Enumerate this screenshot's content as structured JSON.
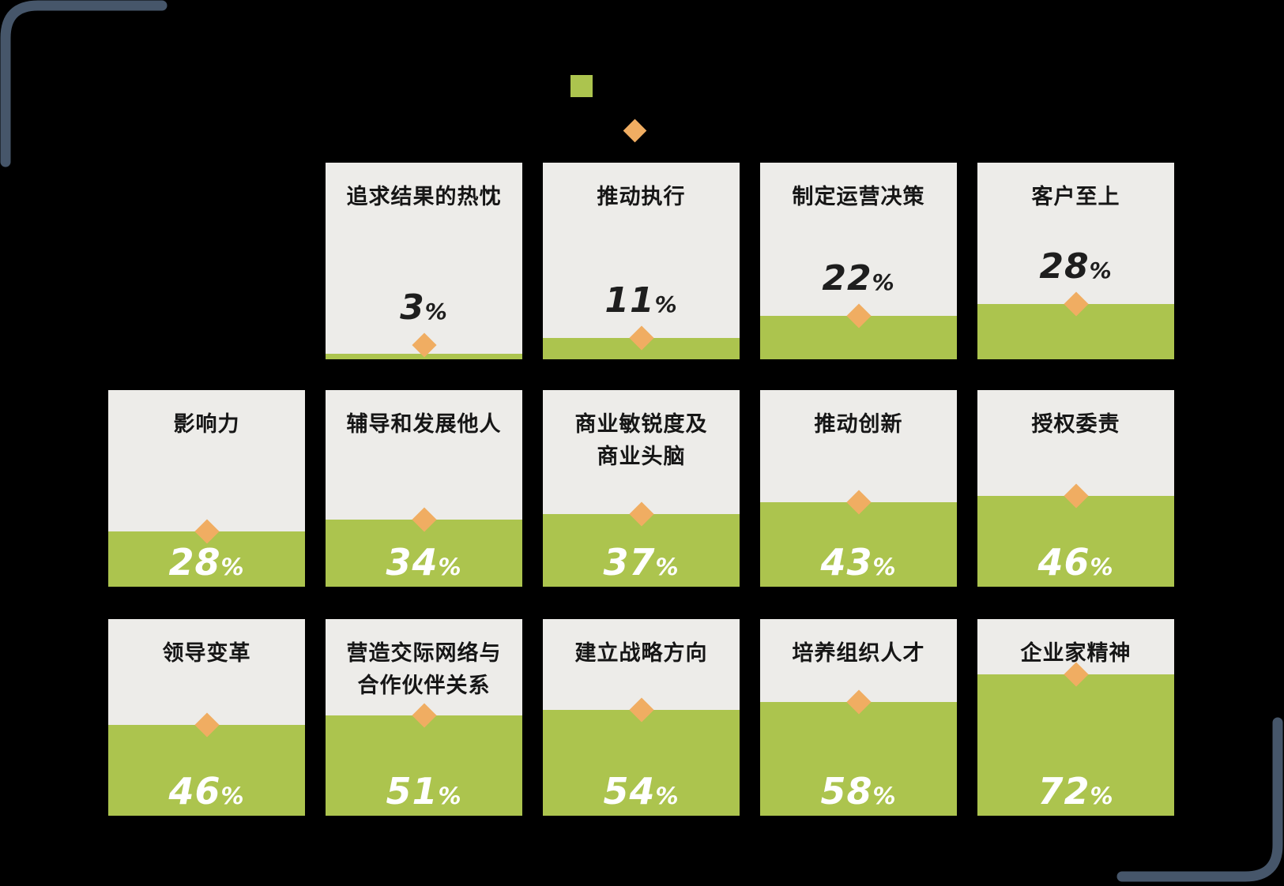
{
  "colors": {
    "background": "#000000",
    "green_fill": "#ACC44E",
    "orange_marker": "#F0AD62",
    "card_background": "#EDECE9",
    "bracket": "#46566A",
    "title_text": "#161616",
    "pct_text_dark": "#1E1E1E",
    "pct_text_light": "#FFFFFF"
  },
  "legend": {
    "fill_swatch_icon": "green-square-icon",
    "marker_swatch_icon": "orange-diamond-icon"
  },
  "cards": [
    {
      "row": 0,
      "title": "追求结果的热忱",
      "value": "3",
      "unit": "%"
    },
    {
      "row": 0,
      "title": "推动执行",
      "value": "11",
      "unit": "%"
    },
    {
      "row": 0,
      "title": "制定运营决策",
      "value": "22",
      "unit": "%"
    },
    {
      "row": 0,
      "title": "客户至上",
      "value": "28",
      "unit": "%"
    },
    {
      "row": 1,
      "title": "影响力",
      "value": "28",
      "unit": "%"
    },
    {
      "row": 1,
      "title": "辅导和发展他人",
      "value": "34",
      "unit": "%"
    },
    {
      "row": 1,
      "title": "商业敏锐度及\n商业头脑",
      "value": "37",
      "unit": "%"
    },
    {
      "row": 1,
      "title": "推动创新",
      "value": "43",
      "unit": "%"
    },
    {
      "row": 1,
      "title": "授权委责",
      "value": "46",
      "unit": "%"
    },
    {
      "row": 2,
      "title": "领导变革",
      "value": "46",
      "unit": "%"
    },
    {
      "row": 2,
      "title": "营造交际网络与\n合作伙伴关系",
      "value": "51",
      "unit": "%"
    },
    {
      "row": 2,
      "title": "建立战略方向",
      "value": "54",
      "unit": "%"
    },
    {
      "row": 2,
      "title": "培养组织人才",
      "value": "58",
      "unit": "%"
    },
    {
      "row": 2,
      "title": "企业家精神",
      "value": "72",
      "unit": "%"
    }
  ],
  "chart_data": {
    "type": "bar",
    "categories": [
      "追求结果的热忱",
      "推动执行",
      "制定运营决策",
      "客户至上",
      "影响力",
      "辅导和发展他人",
      "商业敏锐度及商业头脑",
      "推动创新",
      "授权委责",
      "领导变革",
      "营造交际网络与合作伙伴关系",
      "建立战略方向",
      "培养组织人才",
      "企业家精神"
    ],
    "values": [
      3,
      11,
      22,
      28,
      28,
      34,
      37,
      43,
      46,
      46,
      51,
      54,
      58,
      72
    ],
    "unit": "%",
    "title": "",
    "xlabel": "",
    "ylabel": "",
    "ylim": [
      0,
      100
    ],
    "grid": false,
    "legend_position": "top-center",
    "legend_swatches": [
      "green-square (fill)",
      "orange-diamond (marker at same value)"
    ],
    "layout_hint": "14 percentage-fill cards arranged in 3 rows (4 / 5 / 5), fill height = value% of card, diamond marker sits on the fill line"
  }
}
